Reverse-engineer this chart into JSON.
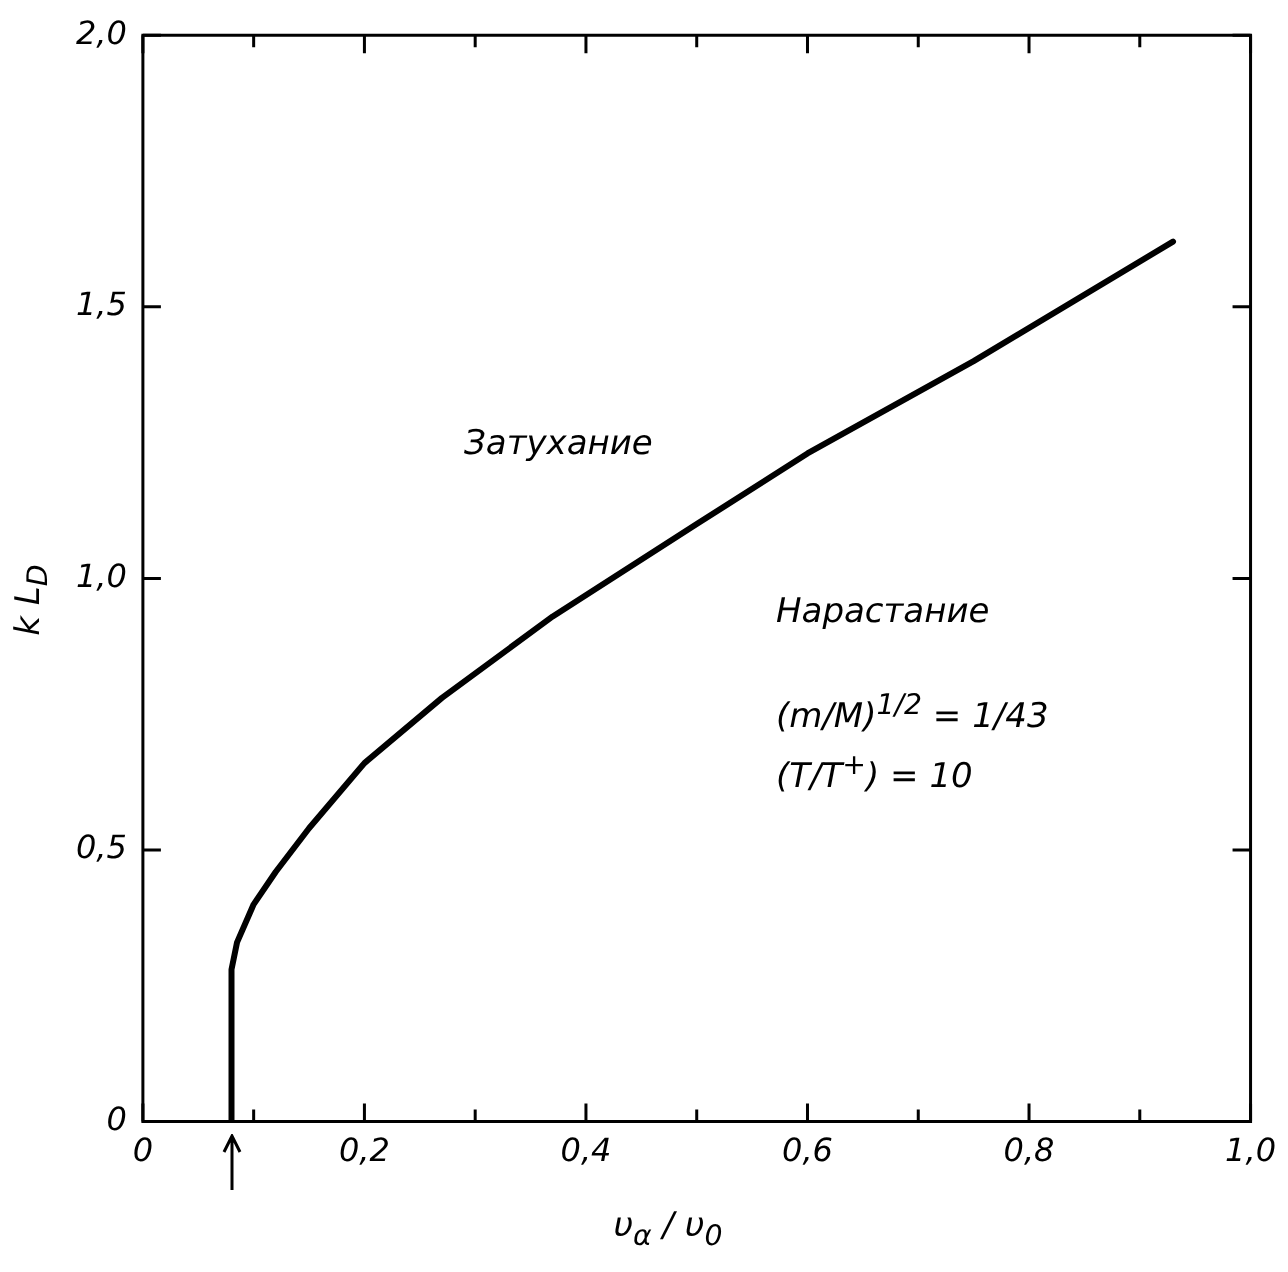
{
  "chart_data": {
    "type": "line",
    "xlabel": "υ$_{α}$ / υ$_{0}$",
    "ylabel": "k L$_{D}$",
    "annotations": [
      "Затухание",
      "Нарастание",
      "(m/M)$^{1/2}$ = 1/43",
      "(T/T$^{+}$) = 10"
    ],
    "series": [
      {
        "color": "#000000",
        "x": [
          0.08,
          0.08,
          0.085,
          0.1,
          0.12,
          0.15,
          0.2,
          0.27,
          0.37,
          0.5,
          0.6,
          0.75,
          0.93
        ],
        "values": [
          0,
          0.28,
          0.33,
          0.4,
          0.46,
          0.54,
          0.66,
          0.78,
          0.93,
          1.1,
          1.23,
          1.4,
          1.62
        ]
      }
    ],
    "xlim": [
      0,
      1
    ],
    "xticks": [
      0,
      {
        "value": 0.1,
        "label": null
      },
      {
        "value": 0.2,
        "label": "0,2"
      },
      {
        "value": 0.3,
        "label": null
      },
      {
        "value": 0.4,
        "label": "0,4"
      },
      {
        "value": 0.5,
        "label": null
      },
      {
        "value": 0.6,
        "label": "0,6"
      },
      {
        "value": 0.7,
        "label": null
      },
      {
        "value": 0.8,
        "label": "0,8"
      },
      {
        "value": 0.9,
        "label": null
      },
      {
        "value": 1,
        "label": "1,0"
      }
    ],
    "ylim": [
      0,
      2
    ],
    "yticks": [
      0,
      {
        "value": 0.5,
        "label": "0,5"
      },
      {
        "value": 1,
        "label": "1,0"
      },
      {
        "value": 1.5,
        "label": "1,5"
      },
      {
        "value": 2,
        "label": "2,0"
      }
    ],
    "marker": "none",
    "legend": false
  }
}
